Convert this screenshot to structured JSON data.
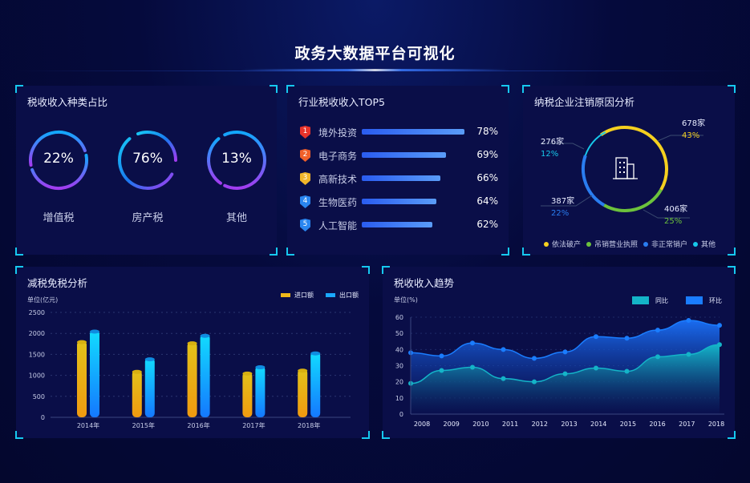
{
  "header": {
    "title": "政务大数据平台可视化"
  },
  "tax_share": {
    "title": "税收收入种类占比",
    "items": [
      {
        "label": "增值税",
        "value": "22%"
      },
      {
        "label": "房产税",
        "value": "76%"
      },
      {
        "label": "其他",
        "value": "13%"
      }
    ]
  },
  "industry_top5": {
    "title": "行业税收收入TOP5",
    "items": [
      {
        "rank": "1",
        "label": "境外投资",
        "value": "78%",
        "pct": 78,
        "color": "#e8332a"
      },
      {
        "rank": "2",
        "label": "电子商务",
        "value": "69%",
        "pct": 69,
        "color": "#f0602a"
      },
      {
        "rank": "3",
        "label": "高新技术",
        "value": "66%",
        "pct": 66,
        "color": "#f0b52a"
      },
      {
        "rank": "4",
        "label": "生物医药",
        "value": "64%",
        "pct": 64,
        "color": "#2a86f0"
      },
      {
        "rank": "5",
        "label": "人工智能",
        "value": "62%",
        "pct": 62,
        "color": "#2a86f0"
      }
    ]
  },
  "cancellation": {
    "title": "纳税企业注销原因分析",
    "icon": "building-icon",
    "segments": [
      {
        "name": "依法破产",
        "count": "678家",
        "pct": "43%",
        "value": 43,
        "color": "#f5d01f"
      },
      {
        "name": "吊销营业执照",
        "count": "406家",
        "pct": "25%",
        "value": 25,
        "color": "#6cc23c"
      },
      {
        "name": "非正常销户",
        "count": "387家",
        "pct": "22%",
        "value": 22,
        "color": "#2a7df0"
      },
      {
        "name": "其他",
        "count": "276家",
        "pct": "12%",
        "value": 12,
        "color": "#17c8ea"
      }
    ]
  },
  "chart_data": [
    {
      "type": "bar",
      "title": "减税免税分析",
      "ylabel": "单位(亿元)",
      "ylim": [
        0,
        2500
      ],
      "yticks": [
        "0",
        "500",
        "1000",
        "1500",
        "2000",
        "2500"
      ],
      "grid": true,
      "legend": "top-right",
      "categories": [
        "2014年",
        "2015年",
        "2016年",
        "2017年",
        "2018年"
      ],
      "series": [
        {
          "name": "进口额",
          "values": [
            1830,
            1120,
            1800,
            1080,
            1150
          ],
          "color": "#f0b81a"
        },
        {
          "name": "出口额",
          "values": [
            2080,
            1420,
            1980,
            1230,
            1560
          ],
          "color": "#1aa8ff"
        }
      ]
    },
    {
      "type": "area",
      "title": "税收收入趋势",
      "ylabel": "单位(%)",
      "ylim": [
        0,
        60
      ],
      "yticks": [
        "0",
        "10",
        "20",
        "30",
        "40",
        "50",
        "60"
      ],
      "legend": "top-right",
      "categories": [
        "2008",
        "2009",
        "2010",
        "2011",
        "2012",
        "2013",
        "2014",
        "2015",
        "2016",
        "2017",
        "2018"
      ],
      "series": [
        {
          "name": "同比",
          "values": [
            19,
            27,
            29,
            22,
            20,
            25,
            28.5,
            26.5,
            35.5,
            37,
            43
          ],
          "color": "#14b4c8"
        },
        {
          "name": "环比",
          "values": [
            38,
            36,
            44,
            40,
            34.5,
            38.5,
            48,
            47,
            52,
            58,
            55
          ],
          "color": "#1a7dff"
        }
      ]
    }
  ]
}
